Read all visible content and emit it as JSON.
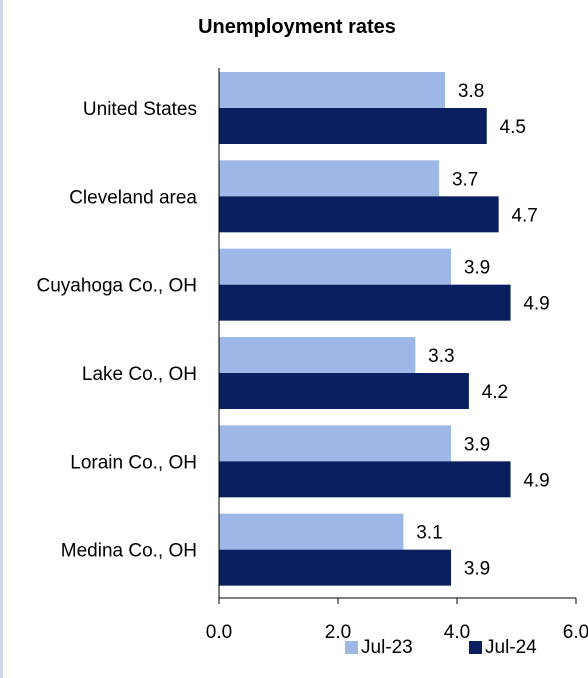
{
  "chart_data": {
    "type": "bar",
    "orientation": "horizontal",
    "title": "Unemployment rates",
    "categories": [
      "United States",
      "Cleveland area",
      "Cuyahoga Co., OH",
      "Lake Co., OH",
      "Lorain Co., OH",
      "Medina Co., OH"
    ],
    "series": [
      {
        "name": "Jul-23",
        "color": "#9db8e6",
        "values": [
          3.8,
          3.7,
          3.9,
          3.3,
          3.9,
          3.1
        ]
      },
      {
        "name": "Jul-24",
        "color": "#0a1f5f",
        "values": [
          4.5,
          4.7,
          4.9,
          4.2,
          4.9,
          3.9
        ]
      }
    ],
    "xlim": [
      0,
      6
    ],
    "xticks": [
      "0.0",
      "2.0",
      "4.0",
      "6.0"
    ],
    "grid": false,
    "legend_position": "bottom-right",
    "value_labels": true
  }
}
